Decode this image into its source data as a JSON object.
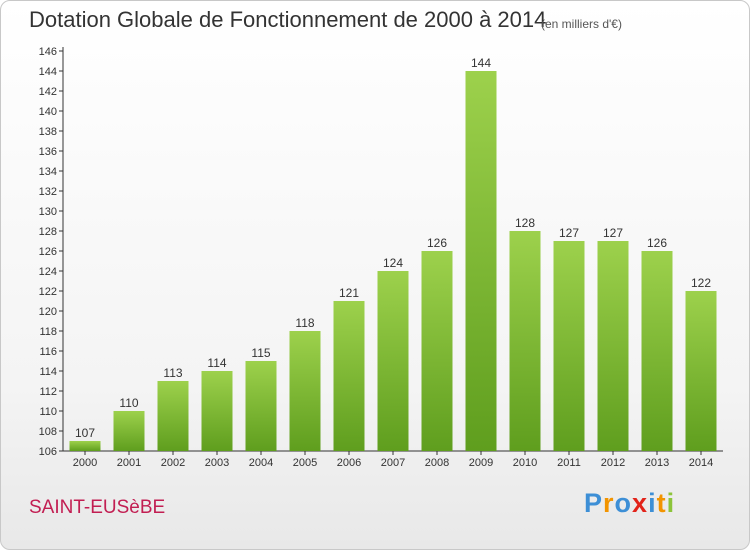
{
  "header": {
    "title": "Dotation Globale de Fonctionnement de 2000 à 2014",
    "subtitle": "(en milliers d'€)"
  },
  "footer": {
    "commune": "SAINT-EUSèBE",
    "logo_letters": [
      "P",
      "r",
      "o",
      "x",
      "i",
      "t",
      "i"
    ],
    "logo_colors": [
      "#3d8fd6",
      "#f29400",
      "#3d8fd6",
      "#e2231a",
      "#3d8fd6",
      "#f29400",
      "#8cc43a"
    ]
  },
  "chart_data": {
    "type": "bar",
    "categories": [
      "2000",
      "2001",
      "2002",
      "2003",
      "2004",
      "2005",
      "2006",
      "2007",
      "2008",
      "2009",
      "2010",
      "2011",
      "2012",
      "2013",
      "2014"
    ],
    "values": [
      107,
      110,
      113,
      114,
      115,
      118,
      121,
      124,
      126,
      144,
      128,
      127,
      127,
      126,
      122
    ],
    "ylim": [
      106,
      146
    ],
    "ytick_step": 2,
    "grid": false,
    "bar_color": "#7ab82e",
    "title": "Dotation Globale de Fonctionnement de 2000 à 2014",
    "xlabel": "",
    "ylabel": ""
  }
}
